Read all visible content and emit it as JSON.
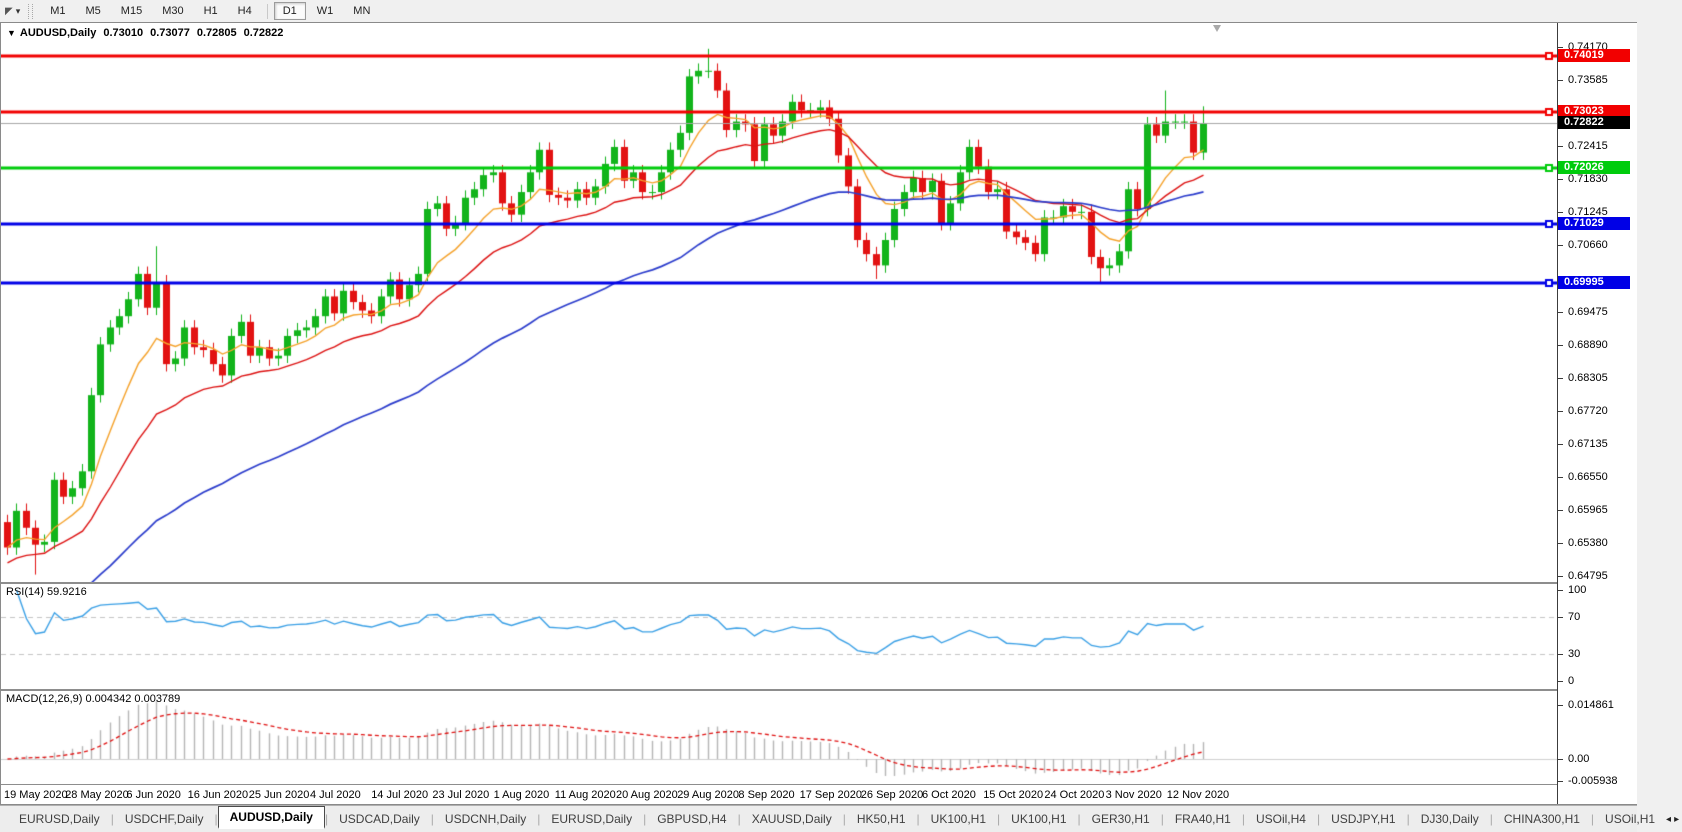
{
  "toolbar": {
    "cursor_icon": "◤",
    "cursor_caret": "▾",
    "timeframes": [
      "M1",
      "M5",
      "M15",
      "M30",
      "H1",
      "H4",
      "D1",
      "W1",
      "MN"
    ],
    "active_timeframe": "D1"
  },
  "chart_header": {
    "collapse_icon": "▼",
    "symbol": "AUDUSD,Daily",
    "open": "0.73010",
    "high": "0.73077",
    "low": "0.72805",
    "close": "0.72822"
  },
  "price_axis": {
    "ticks": [
      "0.74170",
      "0.73585",
      "0.72415",
      "0.71830",
      "0.71245",
      "0.70660",
      "0.69475",
      "0.68890",
      "0.68305",
      "0.67720",
      "0.67135",
      "0.66550",
      "0.65965",
      "0.65380",
      "0.64795"
    ]
  },
  "levels": [
    {
      "label": "0.74019",
      "value": 0.74019,
      "color": "#f20000",
      "width": 3
    },
    {
      "label": "0.73023",
      "value": 0.73023,
      "color": "#f20000",
      "width": 3
    },
    {
      "label": "0.72026",
      "value": 0.72026,
      "color": "#00cc0c",
      "width": 3
    },
    {
      "label": "0.71029",
      "value": 0.71029,
      "color": "#0000e6",
      "width": 3
    },
    {
      "label": "0.69995",
      "value": 0.69995,
      "color": "#0000e6",
      "width": 3
    }
  ],
  "current_price": {
    "label": "0.72822",
    "value": 0.72822,
    "line_color": "#a6a6a6",
    "badge_bg": "#000000"
  },
  "rsi_panel": {
    "label": "RSI(14) 59.9216",
    "axis_labels": [
      "100",
      "70",
      "30",
      "0"
    ],
    "upper_level": 70,
    "lower_level": 30,
    "line_color": "#3aa0e6",
    "level_line_color": "#c4c4c4"
  },
  "macd_panel": {
    "label": "MACD(12,26,9) 0.004342 0.003789",
    "axis_labels": [
      "0.014861",
      "0.00",
      "-0.005938"
    ],
    "hist_color": "#b6b6b6",
    "signal_color": "#e01212"
  },
  "time_axis": {
    "dates": [
      "19 May 2020",
      "28 May 2020",
      "6 Jun 2020",
      "16 Jun 2020",
      "25 Jun 2020",
      "4 Jul 2020",
      "14 Jul 2020",
      "23 Jul 2020",
      "1 Aug 2020",
      "11 Aug 2020",
      "20 Aug 2020",
      "29 Aug 2020",
      "8 Sep 2020",
      "17 Sep 2020",
      "26 Sep 2020",
      "6 Oct 2020",
      "15 Oct 2020",
      "24 Oct 2020",
      "3 Nov 2020",
      "12 Nov 2020"
    ]
  },
  "tabs": {
    "items": [
      "EURUSD,Daily",
      "USDCHF,Daily",
      "AUDUSD,Daily",
      "USDCAD,Daily",
      "USDCNH,Daily",
      "EURUSD,Daily",
      "GBPUSD,H4",
      "XAUUSD,Daily",
      "HK50,H1",
      "UK100,H1",
      "UK100,H1",
      "GER30,H1",
      "FRA40,H1",
      "USOil,H4",
      "USDJPY,H1",
      "DJ30,Daily",
      "CHINA300,H1",
      "USOil,H1"
    ],
    "active_index": 2,
    "scroll_left_icon": "◂",
    "scroll_right_icon": "▸"
  },
  "chart_data": {
    "type": "candlestick",
    "symbol": "AUDUSD",
    "timeframe": "Daily",
    "visible_range": {
      "start": "19 May 2020",
      "end": "13 Nov 2020"
    },
    "y_axis": {
      "top_price": 0.74597,
      "bottom_price": 0.64653,
      "tick_step": 0.00585
    },
    "up_color": "#12b41b",
    "down_color": "#e21212",
    "first_open": 0.6575,
    "default_wick": 0.0013,
    "closes": [
      0.653,
      0.6595,
      0.6565,
      0.6535,
      0.654,
      0.665,
      0.662,
      0.6635,
      0.6665,
      0.68,
      0.689,
      0.692,
      0.694,
      0.697,
      0.7015,
      0.6955,
      0.7,
      0.6855,
      0.6865,
      0.692,
      0.6885,
      0.688,
      0.6855,
      0.6835,
      0.6905,
      0.693,
      0.687,
      0.6885,
      0.6865,
      0.687,
      0.6905,
      0.6915,
      0.692,
      0.694,
      0.6975,
      0.6945,
      0.6985,
      0.6965,
      0.695,
      0.694,
      0.6975,
      0.7005,
      0.697,
      0.6995,
      0.7015,
      0.713,
      0.714,
      0.7095,
      0.7105,
      0.715,
      0.7165,
      0.719,
      0.7195,
      0.714,
      0.712,
      0.716,
      0.7195,
      0.7235,
      0.7155,
      0.715,
      0.7145,
      0.7165,
      0.715,
      0.717,
      0.721,
      0.724,
      0.718,
      0.7195,
      0.716,
      0.716,
      0.7195,
      0.7235,
      0.7265,
      0.7365,
      0.7375,
      0.7375,
      0.734,
      0.727,
      0.7285,
      0.728,
      0.7215,
      0.728,
      0.726,
      0.7285,
      0.732,
      0.7305,
      0.7305,
      0.731,
      0.729,
      0.7225,
      0.717,
      0.7075,
      0.705,
      0.703,
      0.7075,
      0.713,
      0.716,
      0.7185,
      0.716,
      0.718,
      0.7105,
      0.714,
      0.7195,
      0.724,
      0.7205,
      0.716,
      0.7165,
      0.709,
      0.708,
      0.707,
      0.705,
      0.7115,
      0.7115,
      0.7135,
      0.7125,
      0.7125,
      0.7045,
      0.7025,
      0.703,
      0.7055,
      0.7165,
      0.713,
      0.728,
      0.726,
      0.7285,
      0.7285,
      0.7285,
      0.723,
      0.72822
    ],
    "wick_overrides": {
      "3": {
        "low": 0.6482
      },
      "16": {
        "high": 0.7064
      },
      "75": {
        "high": 0.7414
      },
      "93": {
        "low": 0.7006
      },
      "117": {
        "low": 0.6997
      },
      "124": {
        "high": 0.734
      },
      "128": {
        "high": 0.7312
      }
    },
    "moving_averages": [
      {
        "type": "ema",
        "period": 9,
        "color": "#f5a22b",
        "seed": 0.653
      },
      {
        "type": "ema",
        "period": 21,
        "color": "#dd1111",
        "seed": 0.65
      },
      {
        "type": "ema",
        "period": 55,
        "color": "#2b3ccc",
        "seed": 0.64
      }
    ],
    "indicators": {
      "rsi_period": 14,
      "rsi_last": 59.9216,
      "macd_params": [
        12,
        26,
        9
      ],
      "macd_last": 0.004342,
      "macd_signal_last": 0.003789
    }
  }
}
